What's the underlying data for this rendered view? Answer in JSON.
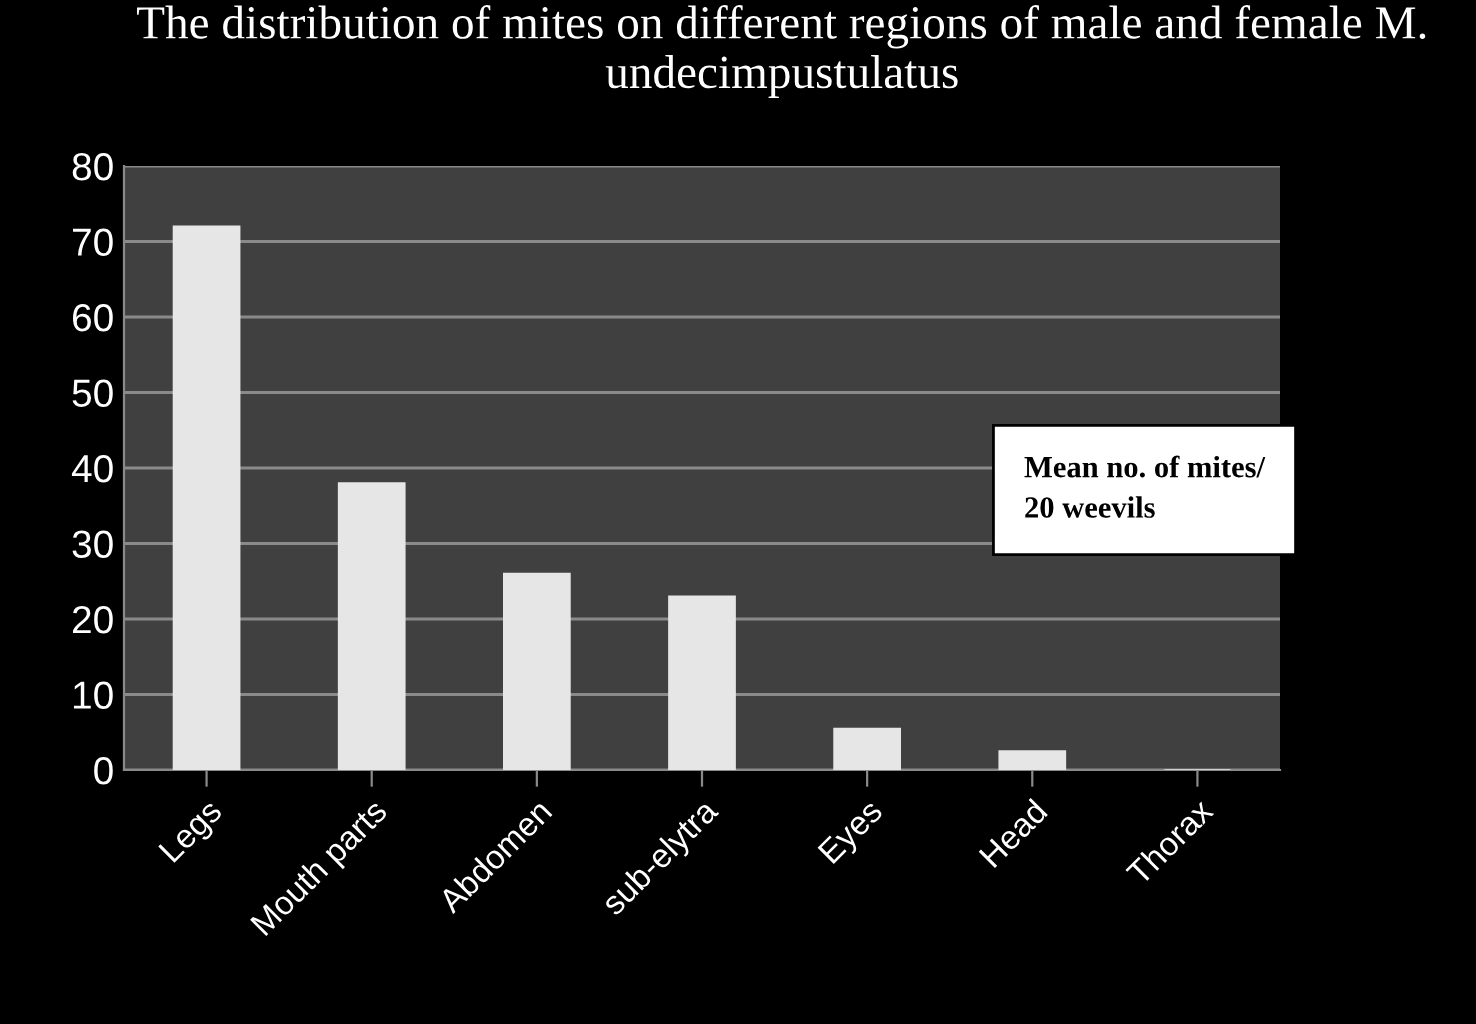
{
  "chart_data": {
    "type": "bar",
    "title": "The distribution of mites on different regions of male and female M. undecimpustulatus",
    "categories": [
      "Legs",
      "Mouth parts",
      "Abdomen",
      "sub-elytra",
      "Eyes",
      "Head",
      "Thorax"
    ],
    "values": [
      72,
      38,
      26,
      23,
      5.5,
      2.5,
      0
    ],
    "color": "#e6e6e6",
    "ylim": [
      0,
      80
    ],
    "yticks": [
      0,
      10,
      20,
      30,
      40,
      50,
      60,
      70,
      80
    ],
    "grid": "y",
    "annotations": [
      "Mean no. of mites/\n20 weevils"
    ]
  }
}
